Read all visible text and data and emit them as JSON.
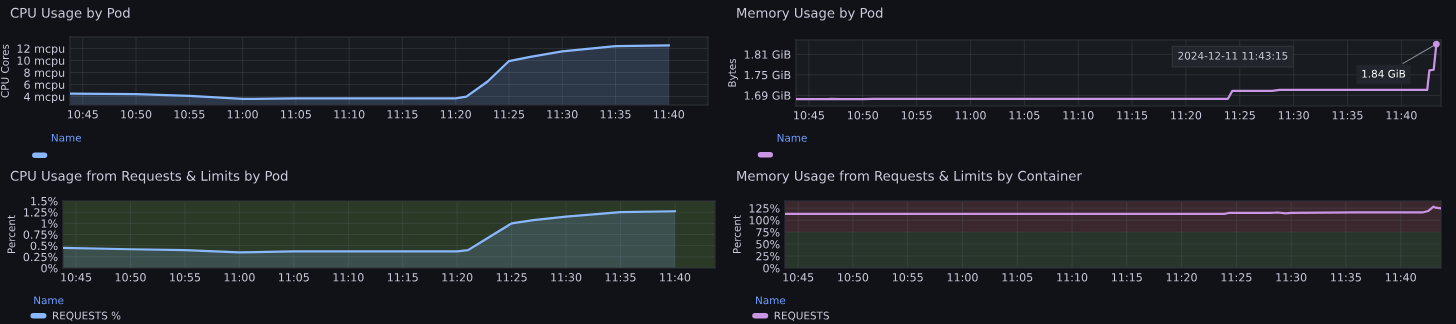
{
  "chart_data": [
    {
      "type": "area",
      "title": "CPU Usage by Pod",
      "ylabel": "CPU Cores",
      "legend_title": "Name",
      "grid": true,
      "xlim": [
        10.73,
        11.728
      ],
      "xticks": [
        {
          "value": 10.75,
          "label": "10:45"
        },
        {
          "value": 10.8333,
          "label": "10:50"
        },
        {
          "value": 10.9167,
          "label": "10:55"
        },
        {
          "value": 11.0,
          "label": "11:00"
        },
        {
          "value": 11.0833,
          "label": "11:05"
        },
        {
          "value": 11.1667,
          "label": "11:10"
        },
        {
          "value": 11.25,
          "label": "11:15"
        },
        {
          "value": 11.3333,
          "label": "11:20"
        },
        {
          "value": 11.4167,
          "label": "11:25"
        },
        {
          "value": 11.5,
          "label": "11:30"
        },
        {
          "value": 11.5833,
          "label": "11:35"
        },
        {
          "value": 11.6667,
          "label": "11:40"
        }
      ],
      "ylim": [
        2.6,
        13.9
      ],
      "yticks": [
        {
          "value": 4,
          "label": "4 mcpu"
        },
        {
          "value": 6,
          "label": "6 mcpu"
        },
        {
          "value": 8,
          "label": "8 mcpu"
        },
        {
          "value": 10,
          "label": "10 mcpu"
        },
        {
          "value": 12,
          "label": "12 mcpu"
        }
      ],
      "series": [
        {
          "color": "#8ab8ff",
          "x": [
            10.73,
            10.8333,
            10.9167,
            11.0,
            11.0833,
            11.25,
            11.3333,
            11.35,
            11.3833,
            11.4167,
            11.45,
            11.5,
            11.5833,
            11.6667
          ],
          "values": [
            4.5,
            4.4,
            4.1,
            3.6,
            3.7,
            3.7,
            3.7,
            4.0,
            6.5,
            9.9,
            10.6,
            11.5,
            12.4,
            12.5
          ]
        }
      ]
    },
    {
      "type": "line",
      "title": "Memory Usage by Pod",
      "ylabel": "Bytes",
      "legend_title": "Name",
      "grid": true,
      "annotations": [
        "2024-12-11 11:43:15",
        {
          "text": "1.84 GiB",
          "x": 11.7208,
          "y": 1.84
        }
      ],
      "xlim": [
        10.73,
        11.728
      ],
      "xticks": [
        {
          "value": 10.75,
          "label": "10:45"
        },
        {
          "value": 10.8333,
          "label": "10:50"
        },
        {
          "value": 10.9167,
          "label": "10:55"
        },
        {
          "value": 11.0,
          "label": "11:00"
        },
        {
          "value": 11.0833,
          "label": "11:05"
        },
        {
          "value": 11.1667,
          "label": "11:10"
        },
        {
          "value": 11.25,
          "label": "11:15"
        },
        {
          "value": 11.3333,
          "label": "11:20"
        },
        {
          "value": 11.4167,
          "label": "11:25"
        },
        {
          "value": 11.5,
          "label": "11:30"
        },
        {
          "value": 11.5833,
          "label": "11:35"
        },
        {
          "value": 11.6667,
          "label": "11:40"
        }
      ],
      "ylim": [
        1.659,
        1.852
      ],
      "yticks": [
        {
          "value": 1.69,
          "label": "1.69 GiB"
        },
        {
          "value": 1.75,
          "label": "1.75 GiB"
        },
        {
          "value": 1.81,
          "label": "1.81 GiB"
        }
      ],
      "series": [
        {
          "color": "#ca95e5",
          "x": [
            10.73,
            10.78,
            10.7833,
            10.8,
            10.8333,
            10.85,
            11.0,
            11.2,
            11.3983,
            11.405,
            11.4667,
            11.4783,
            11.55,
            11.7067,
            11.71,
            11.7167,
            11.7208
          ],
          "values": [
            1.679,
            1.679,
            1.68,
            1.679,
            1.679,
            1.68,
            1.68,
            1.68,
            1.68,
            1.703,
            1.703,
            1.706,
            1.706,
            1.706,
            1.763,
            1.765,
            1.84
          ]
        }
      ]
    },
    {
      "type": "area",
      "title": "CPU Usage from Requests & Limits by Pod",
      "ylabel": "Percent",
      "legend_title": "Name",
      "legend": "bottom",
      "grid": true,
      "bands": [
        {
          "axis": "y",
          "from": 0,
          "to": 1.5,
          "color": "#2a3a26"
        }
      ],
      "xlim": [
        10.73,
        11.728
      ],
      "xticks": [
        {
          "value": 10.75,
          "label": "10:45"
        },
        {
          "value": 10.8333,
          "label": "10:50"
        },
        {
          "value": 10.9167,
          "label": "10:55"
        },
        {
          "value": 11.0,
          "label": "11:00"
        },
        {
          "value": 11.0833,
          "label": "11:05"
        },
        {
          "value": 11.1667,
          "label": "11:10"
        },
        {
          "value": 11.25,
          "label": "11:15"
        },
        {
          "value": 11.3333,
          "label": "11:20"
        },
        {
          "value": 11.4167,
          "label": "11:25"
        },
        {
          "value": 11.5,
          "label": "11:30"
        },
        {
          "value": 11.5833,
          "label": "11:35"
        },
        {
          "value": 11.6667,
          "label": "11:40"
        }
      ],
      "ylim": [
        0,
        1.5
      ],
      "yticks": [
        {
          "value": 0,
          "label": "0%"
        },
        {
          "value": 0.25,
          "label": "0.25%"
        },
        {
          "value": 0.5,
          "label": "0.5%"
        },
        {
          "value": 0.75,
          "label": "0.75%"
        },
        {
          "value": 1,
          "label": "1%"
        },
        {
          "value": 1.25,
          "label": "1.25%"
        },
        {
          "value": 1.5,
          "label": "1.5%"
        }
      ],
      "series": [
        {
          "name": "REQUESTS %",
          "color": "#8ab8ff",
          "x": [
            10.73,
            10.8333,
            10.9167,
            11.0,
            11.0833,
            11.25,
            11.3333,
            11.35,
            11.3833,
            11.4167,
            11.45,
            11.5,
            11.5833,
            11.6667
          ],
          "values": [
            0.45,
            0.42,
            0.4,
            0.35,
            0.37,
            0.37,
            0.37,
            0.4,
            0.7,
            1.0,
            1.07,
            1.15,
            1.25,
            1.27
          ]
        }
      ]
    },
    {
      "type": "line",
      "title": "Memory Usage from Requests & Limits by Container",
      "ylabel": "Percent",
      "legend_title": "Name",
      "legend": "bottom",
      "grid": true,
      "bands": [
        {
          "axis": "y",
          "from": 0,
          "to": 75,
          "color": "#27352a"
        },
        {
          "axis": "y",
          "from": 75,
          "to": 140,
          "color": "#3b282e"
        }
      ],
      "xlim": [
        10.73,
        11.728
      ],
      "xticks": [
        {
          "value": 10.75,
          "label": "10:45"
        },
        {
          "value": 10.8333,
          "label": "10:50"
        },
        {
          "value": 10.9167,
          "label": "10:55"
        },
        {
          "value": 11.0,
          "label": "11:00"
        },
        {
          "value": 11.0833,
          "label": "11:05"
        },
        {
          "value": 11.1667,
          "label": "11:10"
        },
        {
          "value": 11.25,
          "label": "11:15"
        },
        {
          "value": 11.3333,
          "label": "11:20"
        },
        {
          "value": 11.4167,
          "label": "11:25"
        },
        {
          "value": 11.5,
          "label": "11:30"
        },
        {
          "value": 11.5833,
          "label": "11:35"
        },
        {
          "value": 11.6667,
          "label": "11:40"
        }
      ],
      "ylim": [
        0,
        140
      ],
      "yticks": [
        {
          "value": 0,
          "label": "0%"
        },
        {
          "value": 25,
          "label": "25%"
        },
        {
          "value": 50,
          "label": "50%"
        },
        {
          "value": 75,
          "label": "75%"
        },
        {
          "value": 100,
          "label": "100%"
        },
        {
          "value": 125,
          "label": "125%"
        }
      ],
      "series": [
        {
          "name": "REQUESTS",
          "color": "#ca95e5",
          "x": [
            10.73,
            11.0,
            11.3983,
            11.405,
            11.4667,
            11.48,
            11.4917,
            11.5,
            11.6,
            11.7,
            11.7083,
            11.7167,
            11.72,
            11.7267
          ],
          "values": [
            113,
            113,
            113,
            115,
            115,
            116,
            114,
            115,
            116,
            116,
            119,
            128,
            126,
            125
          ]
        }
      ]
    }
  ]
}
